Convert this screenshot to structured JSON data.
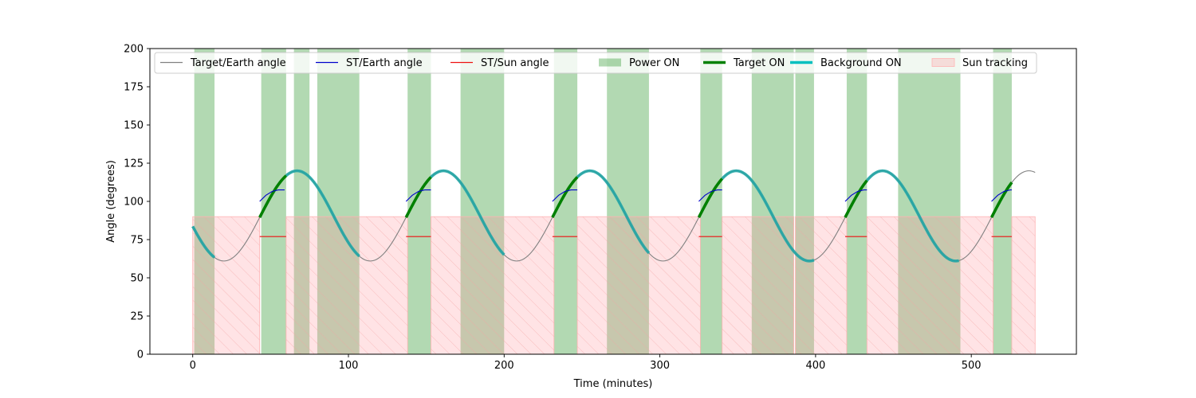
{
  "chart_data": {
    "type": "line",
    "xlabel": "Time (minutes)",
    "ylabel": "Angle (degrees)",
    "xlim": [
      -27.5,
      567.5
    ],
    "ylim": [
      0,
      200
    ],
    "xticks": [
      0,
      100,
      200,
      300,
      400,
      500
    ],
    "yticks": [
      0,
      25,
      50,
      75,
      100,
      125,
      150,
      175,
      200
    ],
    "grid": false,
    "legend": {
      "placement": "top",
      "entries": [
        {
          "label": "Target/Earth angle",
          "kind": "line",
          "color": "#808080"
        },
        {
          "label": "ST/Earth angle",
          "kind": "line",
          "color": "#0000cc"
        },
        {
          "label": "ST/Sun angle",
          "kind": "line",
          "color": "#ee1111"
        },
        {
          "label": "Power ON",
          "kind": "patch",
          "color": "#008000"
        },
        {
          "label": "Target ON",
          "kind": "thick-line",
          "color": "#008000"
        },
        {
          "label": "Background ON",
          "kind": "thick-line",
          "color": "#00bfbf"
        },
        {
          "label": "Sun tracking",
          "kind": "hatch-patch",
          "color": "#ff9999"
        }
      ]
    },
    "target_earth_curve": {
      "description_period_minutes": 94,
      "mean": 90.5,
      "amplitude": 29.5,
      "peak_time": 67,
      "x_range": [
        0,
        541
      ]
    },
    "power_on_spans": [
      [
        1,
        14
      ],
      [
        44,
        60
      ],
      [
        65,
        75
      ],
      [
        80,
        107
      ],
      [
        138,
        153
      ],
      [
        172,
        200
      ],
      [
        232,
        247
      ],
      [
        266,
        293
      ],
      [
        326,
        340
      ],
      [
        359,
        386
      ],
      [
        387,
        399
      ],
      [
        420,
        433
      ],
      [
        453,
        493
      ],
      [
        514,
        526
      ]
    ],
    "sun_tracking_spans": [
      [
        0,
        43
      ],
      [
        60,
        138
      ],
      [
        153,
        232
      ],
      [
        247,
        326
      ],
      [
        340,
        386
      ],
      [
        387,
        420
      ],
      [
        433,
        514
      ],
      [
        526,
        541
      ]
    ],
    "sun_tracking_level": 90,
    "target_on_spans": [
      [
        43,
        60
      ],
      [
        137,
        153
      ],
      [
        231,
        247
      ],
      [
        325,
        340
      ],
      [
        419,
        433
      ],
      [
        513,
        526
      ]
    ],
    "background_on_spans": [
      [
        0,
        14
      ],
      [
        60,
        107
      ],
      [
        153,
        200
      ],
      [
        247,
        293
      ],
      [
        340,
        399
      ],
      [
        433,
        492
      ]
    ],
    "st_earth_segments": [
      {
        "x": [
          43,
          47,
          51,
          55,
          59
        ],
        "y": [
          100,
          104,
          106.5,
          107.5,
          107.5
        ]
      },
      {
        "x": [
          137,
          141,
          145,
          149,
          153
        ],
        "y": [
          100,
          104,
          106.5,
          107.5,
          107.5
        ]
      },
      {
        "x": [
          231,
          235,
          239,
          243,
          247
        ],
        "y": [
          100,
          104,
          106.5,
          107.5,
          107.5
        ]
      },
      {
        "x": [
          325,
          329,
          333,
          337,
          340
        ],
        "y": [
          100,
          104,
          106.5,
          107.5,
          107.5
        ]
      },
      {
        "x": [
          419,
          423,
          427,
          431,
          433
        ],
        "y": [
          100,
          104,
          106.5,
          107.5,
          107.5
        ]
      },
      {
        "x": [
          513,
          517,
          521,
          525,
          526
        ],
        "y": [
          100,
          104,
          106.5,
          107.5,
          107.5
        ]
      }
    ],
    "st_sun_segments": [
      {
        "x": [
          43,
          60
        ],
        "y": [
          77,
          77
        ]
      },
      {
        "x": [
          137,
          153
        ],
        "y": [
          77,
          77
        ]
      },
      {
        "x": [
          231,
          247
        ],
        "y": [
          77,
          77
        ]
      },
      {
        "x": [
          325,
          340
        ],
        "y": [
          77,
          77
        ]
      },
      {
        "x": [
          419,
          433
        ],
        "y": [
          77,
          77
        ]
      },
      {
        "x": [
          513,
          526
        ],
        "y": [
          77,
          77
        ]
      }
    ]
  }
}
